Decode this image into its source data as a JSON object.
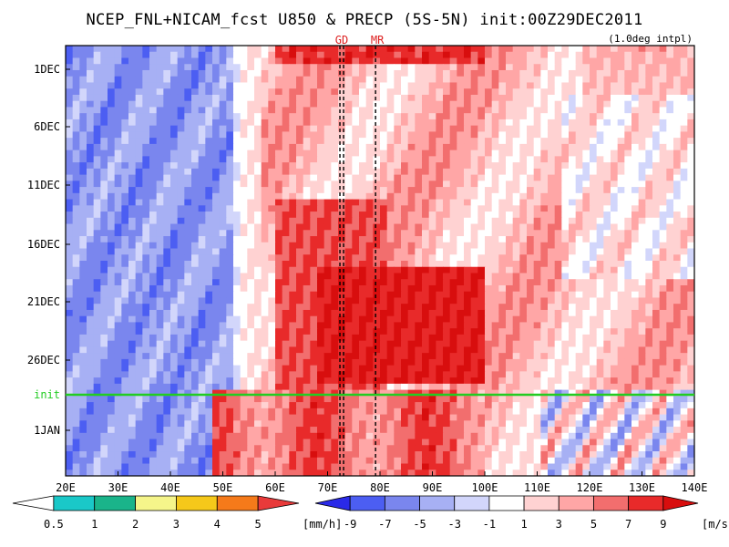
{
  "title": "NCEP_FNL+NICAM_fcst U850 & PRECP (5S-5N) init:00Z29DEC2011",
  "interp_note": "(1.0deg intpl)",
  "colors": {
    "init_line": "#22cc22",
    "marker_text": "#dd2222"
  },
  "chart_data": {
    "type": "heatmap",
    "title": "NCEP_FNL+NICAM_fcst U850 & PRECP (5S-5N) init:00Z29DEC2011",
    "xlabel": "",
    "ylabel": "",
    "x_ticks": [
      "20E",
      "30E",
      "40E",
      "50E",
      "60E",
      "70E",
      "80E",
      "90E",
      "100E",
      "110E",
      "120E",
      "130E",
      "140E"
    ],
    "y_ticks": [
      "1DEC",
      "6DEC",
      "11DEC",
      "16DEC",
      "21DEC",
      "26DEC",
      "1JAN"
    ],
    "xlim_deg": [
      20,
      140
    ],
    "init_label": "init",
    "markers": [
      {
        "label": "GD",
        "lon": 72.7
      },
      {
        "label": "MR",
        "lon": 79.5
      }
    ],
    "wind_legend": {
      "unit": "[m/s]",
      "labels": [
        "-9",
        "-7",
        "-5",
        "-3",
        "-1",
        "1",
        "3",
        "5",
        "7",
        "9"
      ],
      "colors": [
        "#2a2ae8",
        "#4c5ef2",
        "#7a86ee",
        "#a7b0f4",
        "#d2d6fb",
        "#ffffff",
        "#ffd2d2",
        "#ffa6a6",
        "#f26e6e",
        "#e82a2a",
        "#d80e0e"
      ]
    },
    "precip_legend": {
      "unit": "[mm/h]",
      "labels": [
        "0.5",
        "1",
        "2",
        "3",
        "4",
        "5"
      ],
      "colors": [
        "#ffffff",
        "#1ac8c8",
        "#1ab48a",
        "#f5f58a",
        "#f5c81a",
        "#f57a1a",
        "#e83a3a"
      ]
    }
  }
}
